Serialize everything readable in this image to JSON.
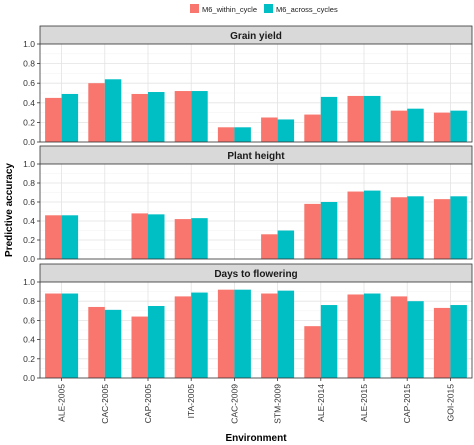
{
  "chart_data": {
    "type": "bar",
    "layout": "faceted",
    "xlabel": "Environment",
    "ylabel": "Predictive accuracy",
    "ylim": [
      0,
      1.0
    ],
    "yticks": [
      "0.0",
      "0.2",
      "0.4",
      "0.6",
      "0.8",
      "1.0"
    ],
    "legend_position": "top",
    "categories": [
      "ALE-2005",
      "CAC-2005",
      "CAP-2005",
      "ITA-2005",
      "CAC-2009",
      "STM-2009",
      "ALE-2014",
      "ALE-2015",
      "CAP-2015",
      "GOI-2015"
    ],
    "series": [
      {
        "name": "M6_within_cycle",
        "color": "#F8766D"
      },
      {
        "name": "M6_across_cycles",
        "color": "#00BFC4"
      }
    ],
    "facets": [
      {
        "title": "Grain yield",
        "values": [
          [
            0.45,
            0.6,
            0.49,
            0.52,
            0.15,
            0.25,
            0.28,
            0.47,
            0.32,
            0.3
          ],
          [
            0.49,
            0.64,
            0.51,
            0.52,
            0.15,
            0.23,
            0.46,
            0.47,
            0.34,
            0.32
          ]
        ]
      },
      {
        "title": "Plant height",
        "values": [
          [
            0.46,
            null,
            0.48,
            0.42,
            null,
            0.26,
            0.58,
            0.71,
            0.65,
            0.63
          ],
          [
            0.46,
            null,
            0.47,
            0.43,
            null,
            0.3,
            0.6,
            0.72,
            0.66,
            0.66
          ]
        ]
      },
      {
        "title": "Days to flowering",
        "values": [
          [
            0.88,
            0.74,
            0.64,
            0.85,
            0.92,
            0.88,
            0.54,
            0.87,
            0.85,
            0.73
          ],
          [
            0.88,
            0.71,
            0.75,
            0.89,
            0.92,
            0.91,
            0.76,
            0.88,
            0.8,
            0.76
          ]
        ]
      }
    ]
  }
}
